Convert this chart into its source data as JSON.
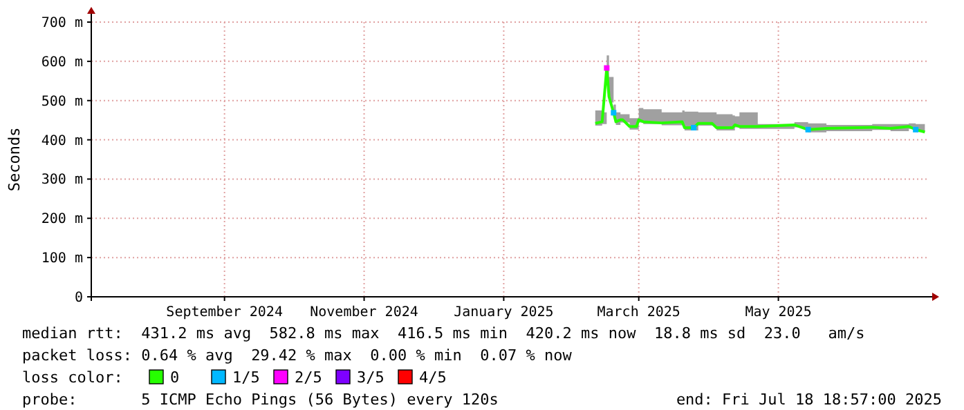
{
  "chart_data": {
    "type": "line",
    "ylabel": "Seconds",
    "legend_title": "loss color:",
    "legend": "bottom",
    "grid": true,
    "x": [
      "2025-02-24",
      "2025-02-27",
      "2025-03-01",
      "2025-03-02",
      "2025-03-04",
      "2025-03-05",
      "2025-03-07",
      "2025-03-08",
      "2025-03-11",
      "2025-03-14",
      "2025-03-15",
      "2025-03-17",
      "2025-03-25",
      "2025-04-03",
      "2025-04-04",
      "2025-04-08",
      "2025-04-10",
      "2025-04-16",
      "2025-04-18",
      "2025-04-25",
      "2025-04-26",
      "2025-04-28",
      "2025-05-06",
      "2025-05-22",
      "2025-05-28",
      "2025-06-05",
      "2025-06-25",
      "2025-07-03",
      "2025-07-11",
      "2025-07-14",
      "2025-07-18"
    ],
    "xlim": [
      "2024-07-18T18:57",
      "2025-07-18T18:57"
    ],
    "xticks": [
      {
        "value": "2024-09-15",
        "label": "September 2024"
      },
      {
        "value": "2024-11-15",
        "label": "November 2024"
      },
      {
        "value": "2025-01-15",
        "label": "January 2025"
      },
      {
        "value": "2025-03-15",
        "label": "March 2025"
      },
      {
        "value": "2025-05-15",
        "label": "May 2025"
      }
    ],
    "ylim": [
      0,
      700
    ],
    "yticks": [
      0,
      {
        "value": 100,
        "label": "100 m"
      },
      {
        "value": 200,
        "label": "200 m"
      },
      {
        "value": 300,
        "label": "300 m"
      },
      {
        "value": 400,
        "label": "400 m"
      },
      {
        "value": 500,
        "label": "500 m"
      },
      {
        "value": 600,
        "label": "600 m"
      },
      {
        "value": 700,
        "label": "700 m"
      }
    ],
    "series": [
      {
        "name": "0",
        "color": "#26ff00",
        "values": [
          442,
          446,
          583,
          510,
          469,
          446,
          451,
          451,
          434,
          434,
          451,
          446,
          443,
          446,
          431,
          431,
          442,
          442,
          431,
          431,
          438,
          434,
          434,
          438,
          426,
          429,
          432,
          429,
          434,
          426,
          420
        ],
        "lower": [
          436,
          440,
          540,
          495,
          455,
          438,
          444,
          444,
          426,
          426,
          444,
          440,
          437,
          440,
          424,
          424,
          436,
          436,
          424,
          424,
          432,
          428,
          428,
          432,
          419,
          422,
          425,
          422,
          428,
          420,
          416
        ],
        "upper": [
          475,
          470,
          615,
          560,
          490,
          470,
          465,
          465,
          455,
          455,
          481,
          478,
          470,
          475,
          472,
          472,
          470,
          470,
          465,
          462,
          460,
          470,
          440,
          445,
          442,
          438,
          440,
          440,
          442,
          440,
          440
        ]
      },
      {
        "name": "1/5",
        "type": "scatter",
        "marker": "square",
        "color": "#00b8ff",
        "values": [
          null,
          null,
          null,
          null,
          469,
          null,
          null,
          null,
          null,
          null,
          null,
          null,
          null,
          null,
          null,
          431,
          null,
          null,
          null,
          null,
          null,
          null,
          null,
          null,
          426,
          null,
          null,
          null,
          null,
          426,
          null
        ]
      },
      {
        "name": "2/5",
        "type": "scatter",
        "marker": "square",
        "color": "#ff00ff",
        "values": [
          null,
          null,
          583,
          null,
          null,
          null,
          null,
          null,
          null,
          null,
          null,
          null,
          null,
          null,
          null,
          null,
          null,
          null,
          null,
          null,
          null,
          null,
          null,
          null,
          null,
          null,
          null,
          null,
          null,
          null,
          null
        ]
      },
      {
        "name": "3/5",
        "type": "scatter",
        "marker": "square",
        "color": "#7e00ff",
        "values": [
          null,
          null,
          null,
          null,
          null,
          null,
          null,
          null,
          null,
          null,
          null,
          null,
          null,
          null,
          null,
          null,
          null,
          null,
          null,
          null,
          null,
          null,
          null,
          null,
          null,
          null,
          null,
          null,
          null,
          null,
          null
        ]
      },
      {
        "name": "4/5",
        "type": "scatter",
        "marker": "square",
        "color": "#ff0000",
        "values": [
          null,
          null,
          null,
          null,
          null,
          null,
          null,
          null,
          null,
          null,
          null,
          null,
          null,
          null,
          null,
          null,
          null,
          null,
          null,
          null,
          null,
          null,
          null,
          null,
          null,
          null,
          null,
          null,
          null,
          null,
          null
        ]
      }
    ],
    "annotations": [
      "median rtt:  431.2 ms avg  582.8 ms max  416.5 ms min  420.2 ms now  18.8 ms sd  23.0   am/s",
      "packet loss: 0.64 % avg  29.42 % max  0.00 % min  0.07 % now",
      "probe:       5 ICMP Echo Pings (56 Bytes) every 120s",
      "end: Fri Jul 18 18:57:00 2025"
    ]
  }
}
